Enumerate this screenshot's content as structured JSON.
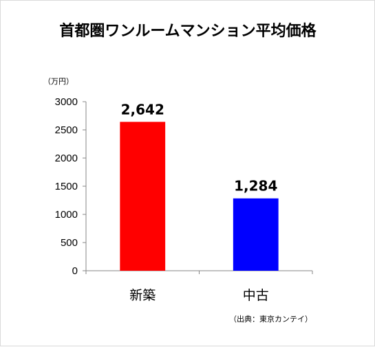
{
  "chart_data": {
    "type": "bar",
    "title": "首都圏ワンルームマンション平均価格",
    "unit_label": "（万円）",
    "categories": [
      "新築",
      "中古"
    ],
    "values": [
      2642,
      1284
    ],
    "data_labels": [
      "2,642",
      "1,284"
    ],
    "bar_colors": [
      "#ff0000",
      "#0000ff"
    ],
    "ylim": [
      0,
      3000
    ],
    "yticks": [
      0,
      500,
      1000,
      1500,
      2000,
      2500,
      3000
    ],
    "grid": false,
    "legend": "none",
    "source": "（出典：東京カンテイ）"
  }
}
